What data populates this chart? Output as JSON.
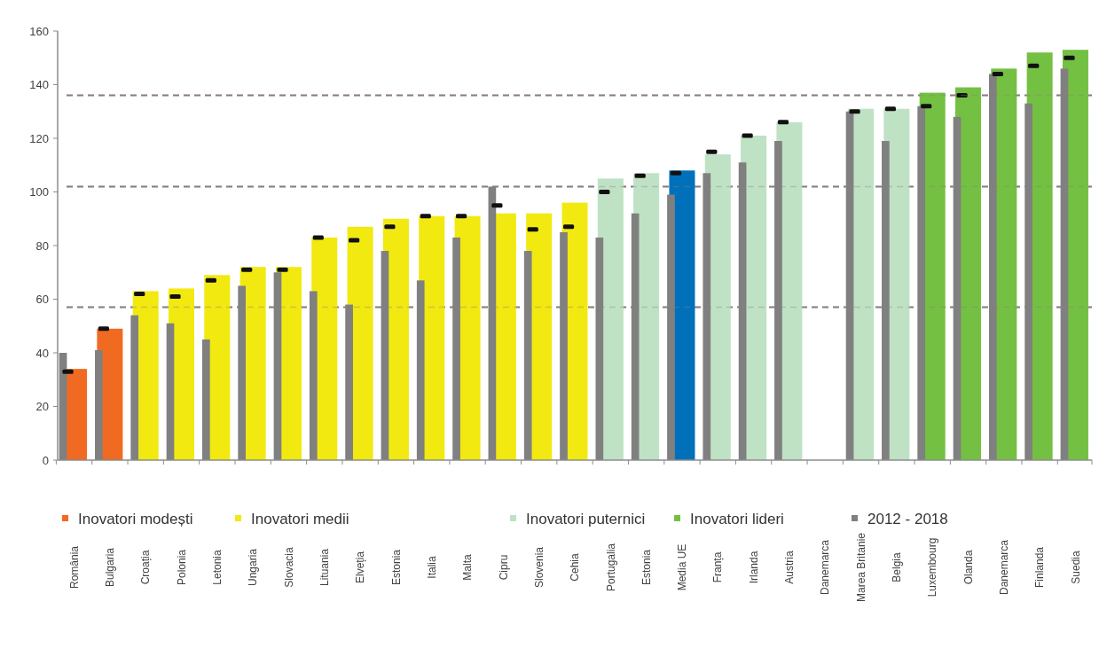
{
  "chart_data": {
    "type": "bar",
    "categories": [
      "România",
      "Bulgaria",
      "Croația",
      "Polonia",
      "Letonia",
      "Ungaria",
      "Slovacia",
      "Lituania",
      "Elveția",
      "Estonia",
      "Italia",
      "Malta",
      "Cipru",
      "Slovenia",
      "Cehia",
      "Portugalia",
      "Estonia",
      "Media UE",
      "Franța",
      "Irlanda",
      "Austria",
      "Danemarca",
      "Marea Britanie",
      "Belgia",
      "Luxembourg",
      "Olanda",
      "Danemarca",
      "Finlanda",
      "Suedia"
    ],
    "series": [
      {
        "name": "Inovatori modești",
        "color": "#f06a22",
        "values": [
          34,
          49,
          null,
          null,
          null,
          null,
          null,
          null,
          null,
          null,
          null,
          null,
          null,
          null,
          null,
          null,
          null,
          null,
          null,
          null,
          null,
          null,
          null,
          null,
          null,
          null,
          null,
          null,
          null
        ]
      },
      {
        "name": "Inovatori medii",
        "color": "#f2e911",
        "values": [
          null,
          null,
          63,
          64,
          69,
          72,
          72,
          83,
          87,
          90,
          91,
          91,
          92,
          92,
          96,
          null,
          null,
          null,
          null,
          null,
          null,
          null,
          null,
          null,
          null,
          null,
          null,
          null,
          null
        ]
      },
      {
        "name": "Inovatori puternici",
        "color": "#bfe2c4",
        "values": [
          null,
          null,
          null,
          null,
          null,
          null,
          null,
          null,
          null,
          null,
          null,
          null,
          null,
          null,
          null,
          105,
          107,
          null,
          114,
          121,
          126,
          null,
          131,
          131,
          null,
          null,
          null,
          null,
          null
        ]
      },
      {
        "color": "#0070bb",
        "values": [
          null,
          null,
          null,
          null,
          null,
          null,
          null,
          null,
          null,
          null,
          null,
          null,
          null,
          null,
          null,
          null,
          null,
          108,
          null,
          null,
          null,
          null,
          null,
          null,
          null,
          null,
          null,
          null,
          null
        ]
      },
      {
        "name": "Inovatori lideri",
        "color": "#74c043",
        "values": [
          null,
          null,
          null,
          null,
          null,
          null,
          null,
          null,
          null,
          null,
          null,
          null,
          null,
          null,
          null,
          null,
          null,
          null,
          null,
          null,
          null,
          null,
          null,
          null,
          137,
          139,
          146,
          152,
          153
        ]
      },
      {
        "name": "2012 - 2018",
        "type": "bar",
        "color": "#808080",
        "values": [
          40,
          41,
          54,
          51,
          45,
          65,
          70,
          63,
          58,
          78,
          67,
          83,
          102,
          78,
          85,
          83,
          92,
          99,
          107,
          111,
          119,
          null,
          130,
          119,
          132,
          128,
          144,
          133,
          146
        ]
      },
      {
        "type": "scatter",
        "color": "#111111",
        "values": [
          33,
          49,
          62,
          61,
          67,
          71,
          71,
          83,
          82,
          87,
          91,
          91,
          95,
          86,
          87,
          100,
          106,
          107,
          115,
          121,
          126,
          null,
          130,
          131,
          132,
          136,
          144,
          147,
          150
        ]
      }
    ],
    "ylim": [
      0,
      160
    ],
    "yticks": [
      0,
      20,
      40,
      60,
      80,
      100,
      120,
      140,
      160
    ],
    "ref_lines": [
      {
        "axis": "y",
        "value": 57,
        "color": "#8a7f7f",
        "line_style": "dashed"
      },
      {
        "axis": "y",
        "value": 102,
        "color": "#8a7f7f",
        "line_style": "dashed"
      },
      {
        "axis": "y",
        "value": 136,
        "color": "#8a7f7f",
        "line_style": "dashed"
      }
    ],
    "legend": "bottom"
  }
}
